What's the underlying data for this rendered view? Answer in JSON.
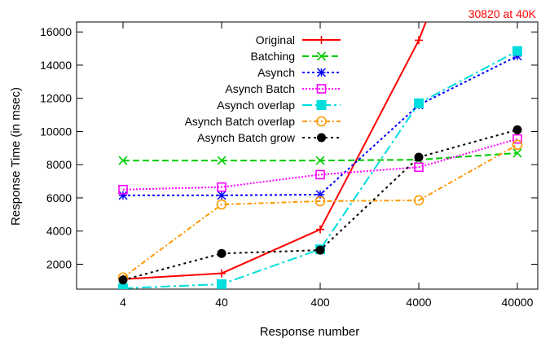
{
  "chart_data": {
    "type": "line",
    "title": "",
    "xlabel": "Response number",
    "ylabel": "Response Time (in msec)",
    "x_scale": "log",
    "categories": [
      "4",
      "40",
      "400",
      "4000",
      "40000"
    ],
    "x": [
      4,
      40,
      400,
      4000,
      40000
    ],
    "ylim": [
      500,
      16600
    ],
    "yticks": [
      2000,
      4000,
      6000,
      8000,
      10000,
      12000,
      14000,
      16000
    ],
    "ytick_labels": [
      "2000",
      "4000",
      "6000",
      "8000",
      "10000",
      "12000",
      "14000",
      "16000"
    ],
    "grid": false,
    "legend_position": "top-left",
    "series": [
      {
        "name": "Original",
        "values": [
          1100,
          1450,
          4100,
          15500,
          30820
        ],
        "color": "#ff0000",
        "dash": "",
        "marker": "plus"
      },
      {
        "name": "Batching",
        "values": [
          8250,
          8250,
          8250,
          8300,
          8700
        ],
        "color": "#00cc00",
        "dash": "8,4",
        "marker": "x"
      },
      {
        "name": "Asynch",
        "values": [
          6150,
          6150,
          6200,
          11600,
          14550
        ],
        "color": "#0000ff",
        "dash": "3,3",
        "marker": "star"
      },
      {
        "name": "Asynch Batch",
        "values": [
          6500,
          6650,
          7400,
          7850,
          9550
        ],
        "color": "#ff00ff",
        "dash": "2,2",
        "marker": "square-open"
      },
      {
        "name": "Asynch overlap",
        "values": [
          550,
          800,
          2900,
          11700,
          14850
        ],
        "color": "#00dddd",
        "dash": "12,4,3,4",
        "marker": "square-filled"
      },
      {
        "name": "Asynch Batch overlap",
        "values": [
          1200,
          5600,
          5800,
          5850,
          9200
        ],
        "color": "#ff9900",
        "dash": "6,3,2,3",
        "marker": "circle-open"
      },
      {
        "name": "Asynch Batch grow",
        "values": [
          1050,
          2650,
          2850,
          8450,
          10100
        ],
        "color": "#000000",
        "dash": "3,4",
        "marker": "circle-filled"
      }
    ],
    "annotations": [
      {
        "text": "30820 at 40K",
        "color": "#ff0000"
      }
    ]
  }
}
